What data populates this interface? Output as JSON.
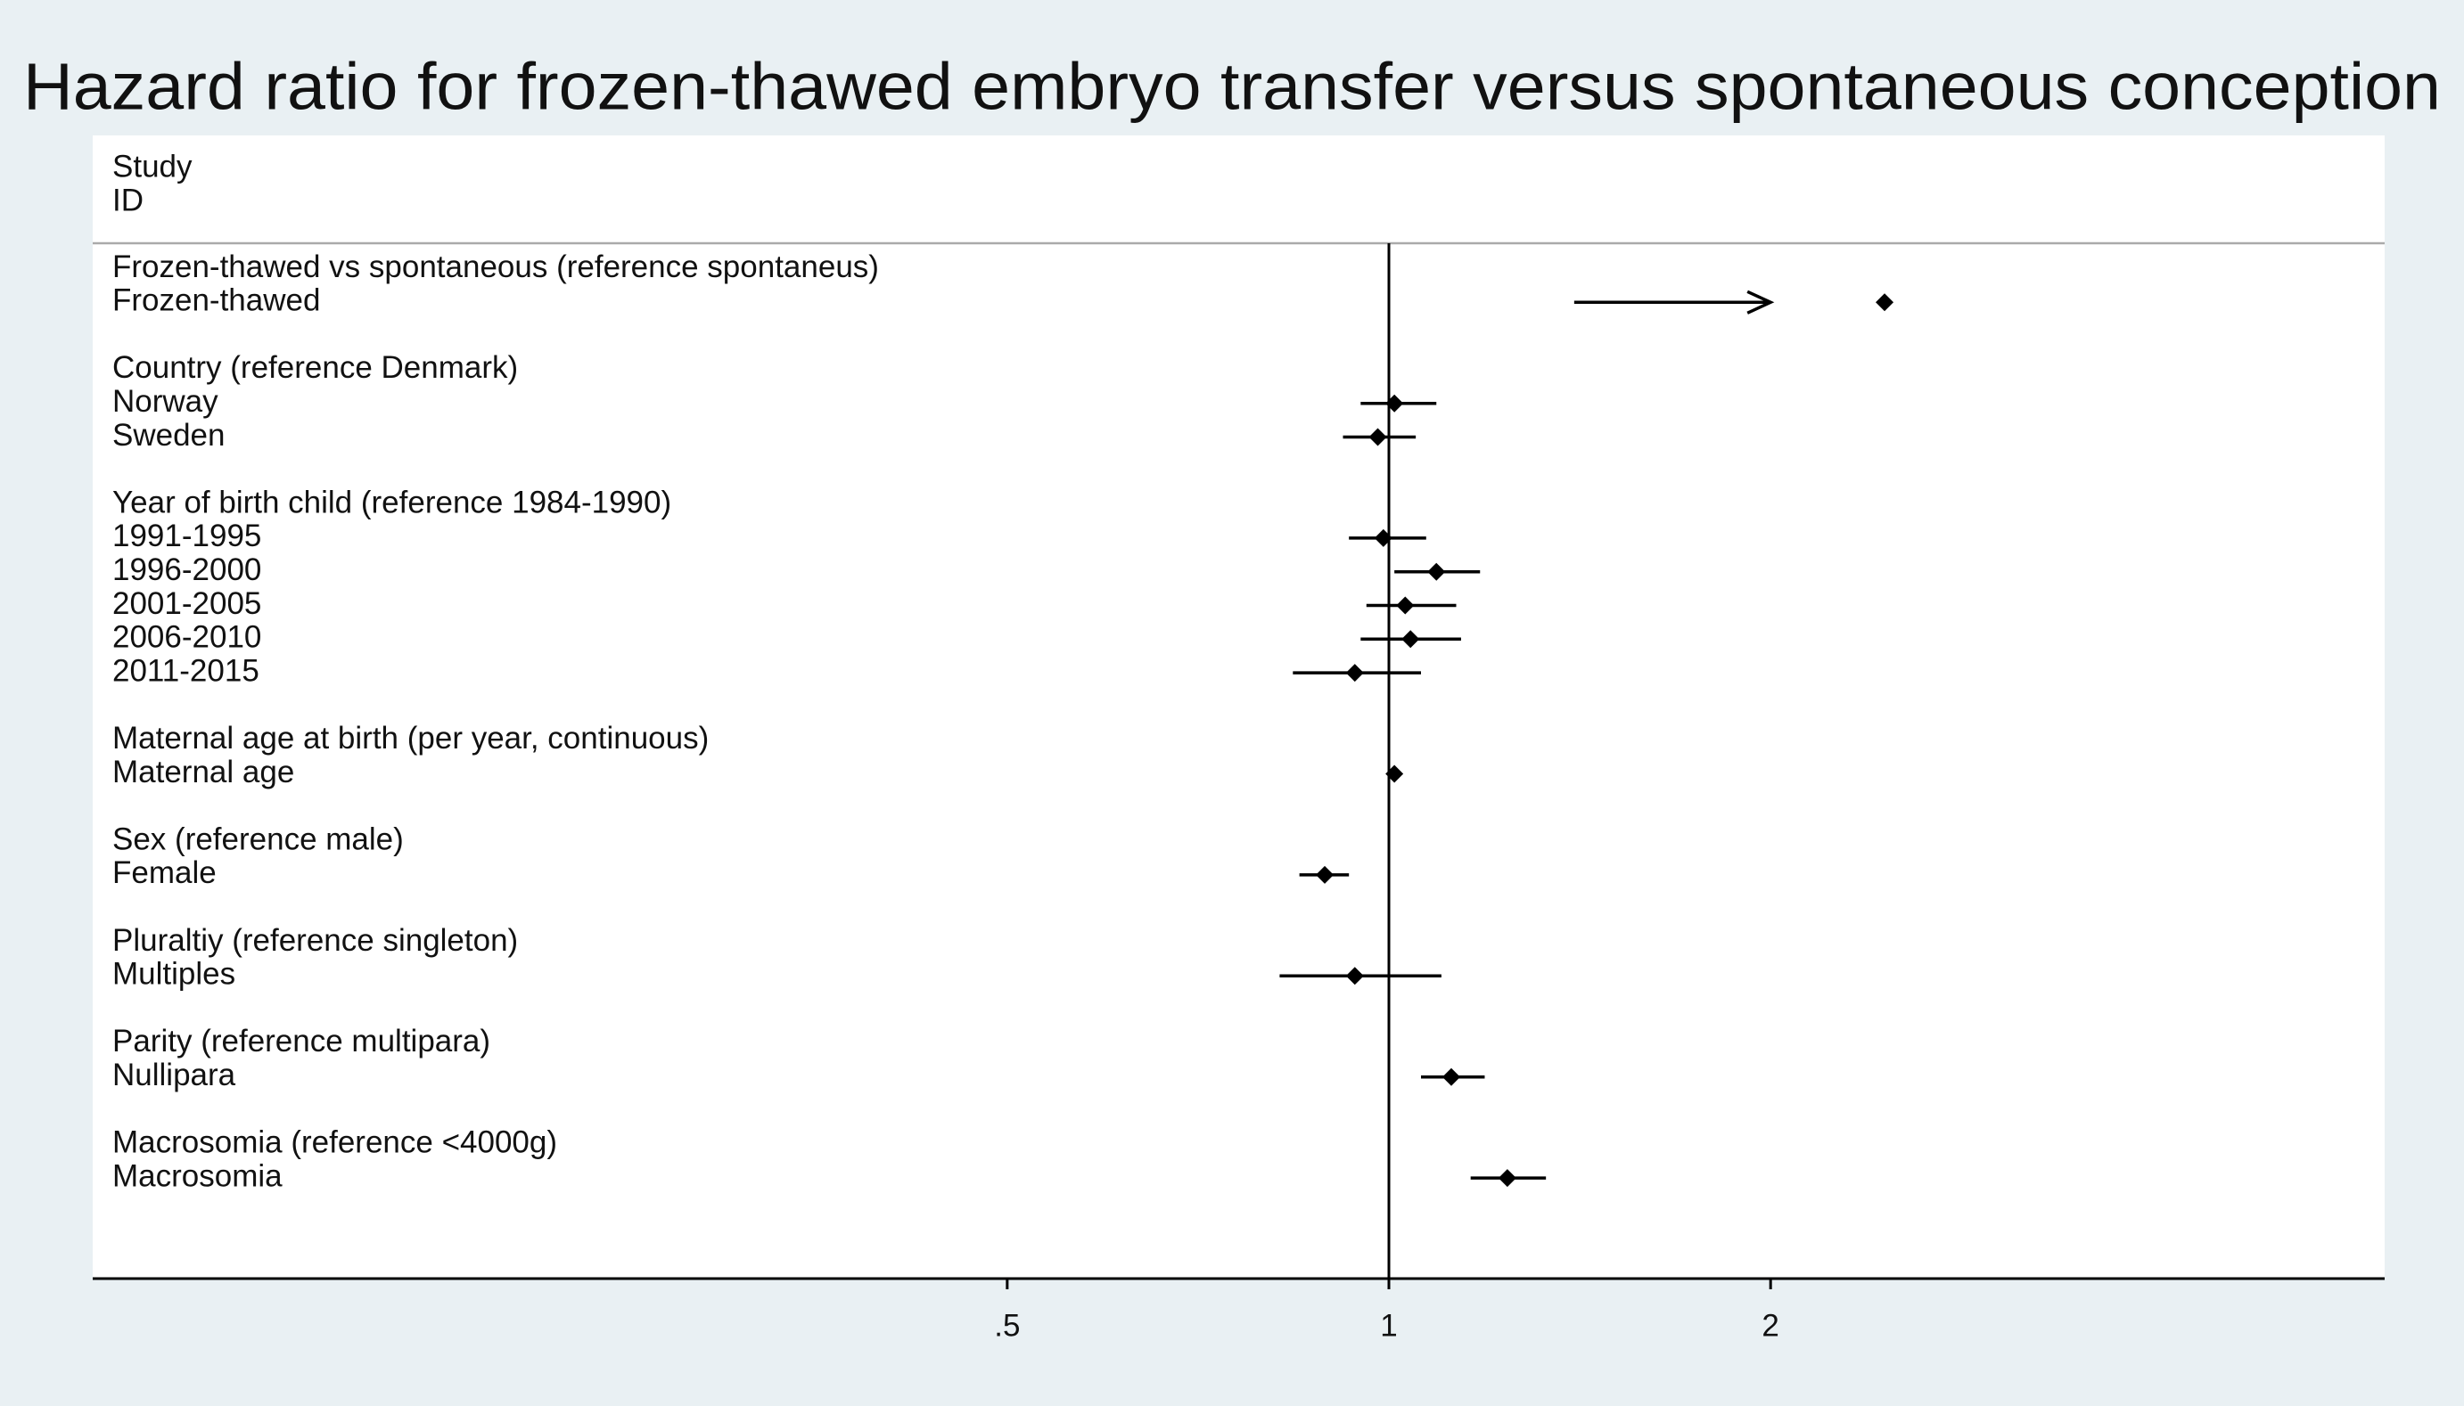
{
  "chart_data": {
    "type": "forest",
    "title": "Hazard ratio for frozen-thawed embryo transfer versus spontaneous conception",
    "row_header": [
      "Study",
      "ID"
    ],
    "categories": [
      "Frozen-thawed vs spontaneous (reference spontaneus)",
      "Frozen-thawed",
      "Country (reference Denmark)",
      "Norway",
      "Sweden",
      "Year of birth child (reference 1984-1990)",
      "1991-1995",
      "1996-2000",
      "2001-2005",
      "2006-2010",
      "2011-2015",
      "Maternal age at birth (per year, continuous)",
      "Maternal age",
      "Sex (reference male)",
      "Female",
      "Pluraltiy (reference singleton)",
      "Multiples",
      "Parity (reference multipara)",
      "Nullipara",
      "Macrosomia (reference <4000g)",
      "Macrosomia"
    ],
    "values": [
      null,
      2.46,
      null,
      1.01,
      0.98,
      null,
      0.99,
      1.09,
      1.03,
      1.04,
      0.94,
      null,
      1.01,
      null,
      0.89,
      null,
      0.94,
      null,
      1.12,
      null,
      1.24
    ],
    "ci_low": [
      null,
      1.4,
      null,
      0.95,
      0.92,
      null,
      0.93,
      1.01,
      0.96,
      0.95,
      0.84,
      null,
      1.0,
      null,
      0.85,
      null,
      0.82,
      null,
      1.06,
      null,
      1.16
    ],
    "ci_high": [
      null,
      null,
      null,
      1.09,
      1.05,
      null,
      1.07,
      1.18,
      1.13,
      1.14,
      1.06,
      null,
      1.02,
      null,
      0.93,
      null,
      1.1,
      null,
      1.19,
      null,
      1.33
    ],
    "ci_clip": 2,
    "reference_line": 1,
    "xscale": "log",
    "xlim": [
      0.095,
      6.1
    ],
    "xticks": [
      {
        "value": 0.5,
        "label": ".5"
      },
      1,
      2
    ],
    "color": "#000000"
  }
}
